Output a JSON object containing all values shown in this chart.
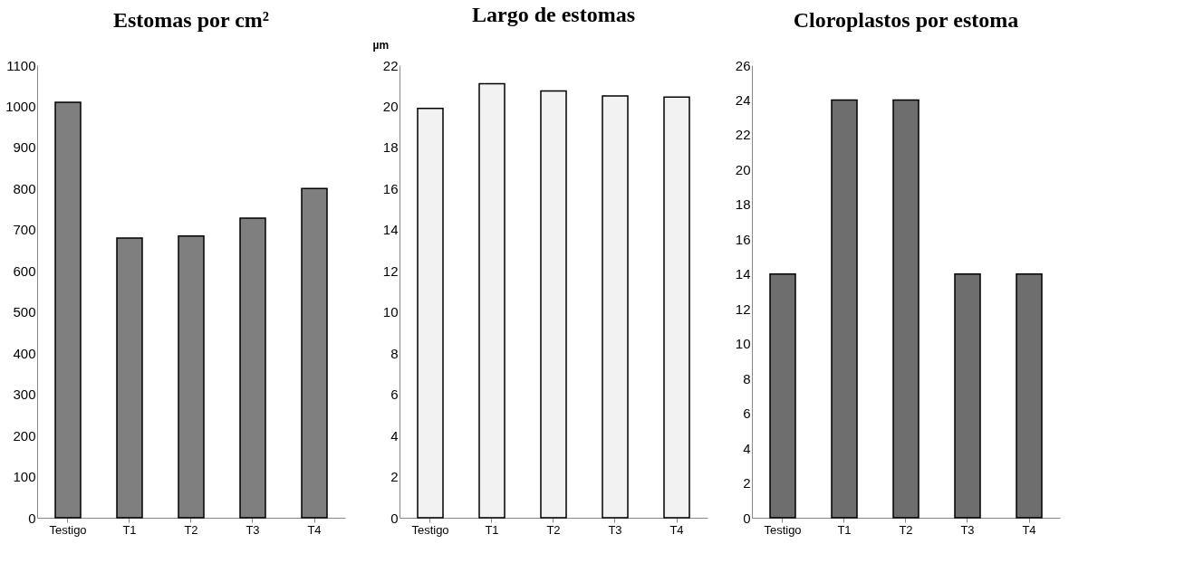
{
  "chart_data": [
    {
      "type": "bar",
      "title": "Estomas por cm²",
      "categories": [
        "Testigo",
        "T1",
        "T2",
        "T3",
        "T4"
      ],
      "series": [
        {
          "color": "#7f7f7f",
          "values": [
            1010,
            680,
            685,
            728,
            800
          ]
        }
      ],
      "ylim": [
        0,
        1100
      ],
      "yticks": [
        0,
        100,
        200,
        300,
        400,
        500,
        600,
        700,
        800,
        900,
        1000,
        1100
      ],
      "grid": false
    },
    {
      "type": "bar",
      "title": "Largo de estomas",
      "ylabel": "µm",
      "categories": [
        "Testigo",
        "T1",
        "T2",
        "T3",
        "T4"
      ],
      "series": [
        {
          "color": "#f2f2f2",
          "values": [
            19.9,
            21.1,
            20.75,
            20.5,
            20.45
          ]
        }
      ],
      "ylim": [
        0,
        22
      ],
      "yticks": [
        0,
        2,
        4,
        6,
        8,
        10,
        12,
        14,
        16,
        18,
        20,
        22
      ],
      "grid": false
    },
    {
      "type": "bar",
      "title": "Cloroplastos por estoma",
      "categories": [
        "Testigo",
        "T1",
        "T2",
        "T3",
        "T4"
      ],
      "series": [
        {
          "color": "#6e6e6e",
          "values": [
            14,
            24,
            24,
            14,
            14
          ]
        }
      ],
      "ylim": [
        0,
        26
      ],
      "yticks": [
        0,
        2,
        4,
        6,
        8,
        10,
        12,
        14,
        16,
        18,
        20,
        22,
        24,
        26
      ],
      "grid": false
    }
  ]
}
